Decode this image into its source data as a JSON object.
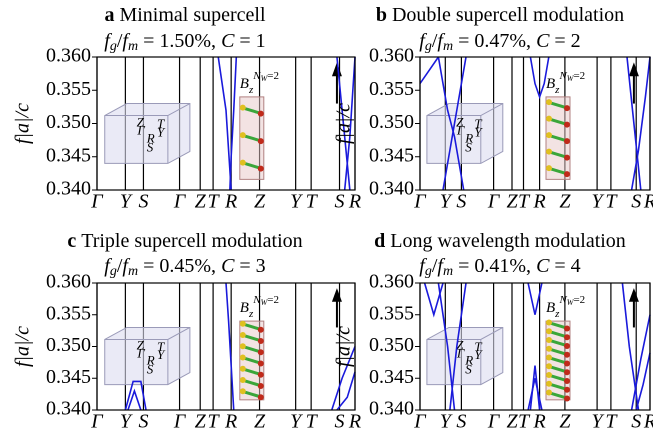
{
  "chart_data": [
    {
      "type": "line",
      "label": "a",
      "title": "Minimal supercell",
      "subtitle_parts": [
        "f",
        "g",
        "/",
        "f",
        "m",
        " = 1.50%, ",
        "C",
        " = 1"
      ],
      "ylabel": "f|a|/c",
      "ylim": [
        0.34,
        0.36
      ],
      "yticks": [
        {
          "value": 0.34,
          "label": "0.340"
        },
        {
          "value": 0.345,
          "label": "0.345"
        },
        {
          "value": 0.35,
          "label": "0.350"
        },
        {
          "value": 0.355,
          "label": "0.355"
        },
        {
          "value": 0.36,
          "label": "0.360"
        }
      ],
      "xlim": [
        0,
        1
      ],
      "xticks": [
        {
          "value": 0,
          "label": "Γ"
        },
        {
          "value": 0.11,
          "label": "Y"
        },
        {
          "value": 0.18,
          "label": "S"
        },
        {
          "value": 0.32,
          "label": "Γ"
        },
        {
          "value": 0.4,
          "label": "Z"
        },
        {
          "value": 0.45,
          "label": "T"
        },
        {
          "value": 0.52,
          "label": "R"
        },
        {
          "value": 0.63,
          "label": "Z"
        },
        {
          "value": 0.77,
          "label": "Y"
        },
        {
          "value": 0.83,
          "label": "T"
        },
        {
          "value": 0.94,
          "label": "S"
        },
        {
          "value": 1,
          "label": "R"
        }
      ],
      "inset_labels": [
        "Z",
        "T",
        "Γ",
        "Y",
        "R",
        "S"
      ],
      "field_label_parts": [
        "B",
        "z",
        "N",
        "W",
        "=2"
      ],
      "series": [
        {
          "color": "#1a1adb",
          "x": [
            0.47,
            0.5,
            0.52
          ],
          "values": [
            0.36,
            0.352,
            0.34
          ]
        },
        {
          "color": "#1a1adb",
          "x": [
            0.54,
            0.53,
            0.52,
            0.515
          ],
          "values": [
            0.36,
            0.352,
            0.345,
            0.34
          ]
        },
        {
          "color": "#1a1adb",
          "x": [
            0.93,
            0.955,
            0.98
          ],
          "values": [
            0.36,
            0.35,
            0.34
          ]
        },
        {
          "color": "#1a1adb",
          "x": [
            0.96,
            0.98,
            1
          ],
          "values": [
            0.34,
            0.348,
            0.36
          ]
        }
      ]
    },
    {
      "type": "line",
      "label": "b",
      "title": "Double supercell modulation",
      "subtitle_parts": [
        "f",
        "g",
        "/",
        "f",
        "m",
        " = 0.47%, ",
        "C",
        " = 2"
      ],
      "ylabel": "f|a|/c",
      "ylim": [
        0.34,
        0.36
      ],
      "yticks": [
        {
          "value": 0.34,
          "label": "0.340"
        },
        {
          "value": 0.345,
          "label": "0.345"
        },
        {
          "value": 0.35,
          "label": "0.350"
        },
        {
          "value": 0.355,
          "label": "0.355"
        },
        {
          "value": 0.36,
          "label": "0.360"
        }
      ],
      "xlim": [
        0,
        1
      ],
      "xticks": [
        {
          "value": 0,
          "label": "Γ"
        },
        {
          "value": 0.11,
          "label": "Y"
        },
        {
          "value": 0.18,
          "label": "S"
        },
        {
          "value": 0.32,
          "label": "Γ"
        },
        {
          "value": 0.4,
          "label": "Z"
        },
        {
          "value": 0.45,
          "label": "T"
        },
        {
          "value": 0.52,
          "label": "R"
        },
        {
          "value": 0.63,
          "label": "Z"
        },
        {
          "value": 0.77,
          "label": "Y"
        },
        {
          "value": 0.83,
          "label": "T"
        },
        {
          "value": 0.94,
          "label": "S"
        },
        {
          "value": 1,
          "label": "R"
        }
      ],
      "inset_labels": [
        "Z",
        "T",
        "Γ",
        "Y",
        "R",
        "S"
      ],
      "field_label_parts": [
        "B",
        "z",
        "N",
        "W",
        "=2"
      ],
      "series": [
        {
          "color": "#1a1adb",
          "x": [
            0.08,
            0.12,
            0.15,
            0.19
          ],
          "values": [
            0.36,
            0.352,
            0.348,
            0.34
          ]
        },
        {
          "color": "#1a1adb",
          "x": [
            0.1,
            0.13,
            0.16,
            0.2
          ],
          "values": [
            0.34,
            0.346,
            0.352,
            0.36
          ]
        },
        {
          "color": "#1a1adb",
          "x": [
            0,
            0.04,
            0.08
          ],
          "values": [
            0.356,
            0.358,
            0.36
          ]
        },
        {
          "color": "#1a1adb",
          "x": [
            0.48,
            0.5,
            0.52,
            0.54,
            0.56
          ],
          "values": [
            0.36,
            0.356,
            0.354,
            0.356,
            0.36
          ]
        },
        {
          "color": "#1a1adb",
          "x": [
            0.9,
            0.93,
            0.96
          ],
          "values": [
            0.36,
            0.35,
            0.34
          ]
        },
        {
          "color": "#1a1adb",
          "x": [
            0.92,
            0.95,
            0.98,
            1
          ],
          "values": [
            0.34,
            0.346,
            0.354,
            0.36
          ]
        }
      ]
    },
    {
      "type": "line",
      "label": "c",
      "title": "Triple supercell modulation",
      "subtitle_parts": [
        "f",
        "g",
        "/",
        "f",
        "m",
        " = 0.45%, ",
        "C",
        " = 3"
      ],
      "ylabel": "f|a|/c",
      "ylim": [
        0.34,
        0.36
      ],
      "yticks": [
        {
          "value": 0.34,
          "label": "0.340"
        },
        {
          "value": 0.345,
          "label": "0.345"
        },
        {
          "value": 0.35,
          "label": "0.350"
        },
        {
          "value": 0.355,
          "label": "0.355"
        },
        {
          "value": 0.36,
          "label": "0.360"
        }
      ],
      "xlim": [
        0,
        1
      ],
      "xticks": [
        {
          "value": 0,
          "label": "Γ"
        },
        {
          "value": 0.11,
          "label": "Y"
        },
        {
          "value": 0.18,
          "label": "S"
        },
        {
          "value": 0.32,
          "label": "Γ"
        },
        {
          "value": 0.4,
          "label": "Z"
        },
        {
          "value": 0.45,
          "label": "T"
        },
        {
          "value": 0.52,
          "label": "R"
        },
        {
          "value": 0.63,
          "label": "Z"
        },
        {
          "value": 0.77,
          "label": "Y"
        },
        {
          "value": 0.83,
          "label": "T"
        },
        {
          "value": 0.94,
          "label": "S"
        },
        {
          "value": 1,
          "label": "R"
        }
      ],
      "inset_labels": [
        "Z",
        "T",
        "Γ",
        "Y",
        "R",
        "S"
      ],
      "field_label_parts": [
        "B",
        "z",
        "N",
        "W",
        "=2"
      ],
      "series": [
        {
          "color": "#1a1adb",
          "x": [
            0.11,
            0.14,
            0.17,
            0.19
          ],
          "values": [
            0.34,
            0.3445,
            0.3445,
            0.34
          ]
        },
        {
          "color": "#1a1adb",
          "x": [
            0.12,
            0.145,
            0.17
          ],
          "values": [
            0.34,
            0.343,
            0.34
          ]
        },
        {
          "color": "#1a1adb",
          "x": [
            0.5,
            0.51,
            0.52,
            0.53
          ],
          "values": [
            0.36,
            0.354,
            0.347,
            0.34
          ]
        },
        {
          "color": "#1a1adb",
          "x": [
            0.91,
            0.95,
            1
          ],
          "values": [
            0.34,
            0.345,
            0.35
          ]
        },
        {
          "color": "#1a1adb",
          "x": [
            0.93,
            0.97,
            1
          ],
          "values": [
            0.34,
            0.342,
            0.346
          ]
        }
      ]
    },
    {
      "type": "line",
      "label": "d",
      "title": "Long wavelength modulation",
      "subtitle_parts": [
        "f",
        "g",
        "/",
        "f",
        "m",
        " = 0.41%, ",
        "C",
        " = 4"
      ],
      "ylabel": "f|a|/c",
      "ylim": [
        0.34,
        0.36
      ],
      "yticks": [
        {
          "value": 0.34,
          "label": "0.340"
        },
        {
          "value": 0.345,
          "label": "0.345"
        },
        {
          "value": 0.35,
          "label": "0.350"
        },
        {
          "value": 0.355,
          "label": "0.355"
        },
        {
          "value": 0.36,
          "label": "0.360"
        }
      ],
      "xlim": [
        0,
        1
      ],
      "xticks": [
        {
          "value": 0,
          "label": "Γ"
        },
        {
          "value": 0.11,
          "label": "Y"
        },
        {
          "value": 0.18,
          "label": "S"
        },
        {
          "value": 0.32,
          "label": "Γ"
        },
        {
          "value": 0.4,
          "label": "Z"
        },
        {
          "value": 0.45,
          "label": "T"
        },
        {
          "value": 0.52,
          "label": "R"
        },
        {
          "value": 0.63,
          "label": "Z"
        },
        {
          "value": 0.77,
          "label": "Y"
        },
        {
          "value": 0.83,
          "label": "T"
        },
        {
          "value": 0.94,
          "label": "S"
        },
        {
          "value": 1,
          "label": "R"
        }
      ],
      "inset_labels": [
        "Z",
        "T",
        "Γ",
        "Y",
        "R",
        "S"
      ],
      "field_label_parts": [
        "B",
        "z",
        "N",
        "W",
        "=2"
      ],
      "series": [
        {
          "color": "#1a1adb",
          "x": [
            0.08,
            0.12,
            0.15
          ],
          "values": [
            0.36,
            0.35,
            0.34
          ]
        },
        {
          "color": "#1a1adb",
          "x": [
            0.13,
            0.16,
            0.2
          ],
          "values": [
            0.34,
            0.35,
            0.36
          ]
        },
        {
          "color": "#1a1adb",
          "x": [
            0.02,
            0.06,
            0.1
          ],
          "values": [
            0.36,
            0.355,
            0.36
          ]
        },
        {
          "color": "#1a1adb",
          "x": [
            0.48,
            0.5,
            0.52
          ],
          "values": [
            0.34,
            0.347,
            0.34
          ]
        },
        {
          "color": "#1a1adb",
          "x": [
            0.47,
            0.5,
            0.53
          ],
          "values": [
            0.34,
            0.345,
            0.34
          ]
        },
        {
          "color": "#1a1adb",
          "x": [
            0.47,
            0.5,
            0.53
          ],
          "values": [
            0.36,
            0.355,
            0.36
          ]
        },
        {
          "color": "#1a1adb",
          "x": [
            0.88,
            0.91,
            0.95
          ],
          "values": [
            0.36,
            0.35,
            0.34
          ]
        },
        {
          "color": "#1a1adb",
          "x": [
            0.92,
            0.96,
            1
          ],
          "values": [
            0.34,
            0.348,
            0.355
          ]
        },
        {
          "color": "#1a1adb",
          "x": [
            0.94,
            0.97,
            1
          ],
          "values": [
            0.34,
            0.344,
            0.349
          ]
        }
      ]
    }
  ]
}
